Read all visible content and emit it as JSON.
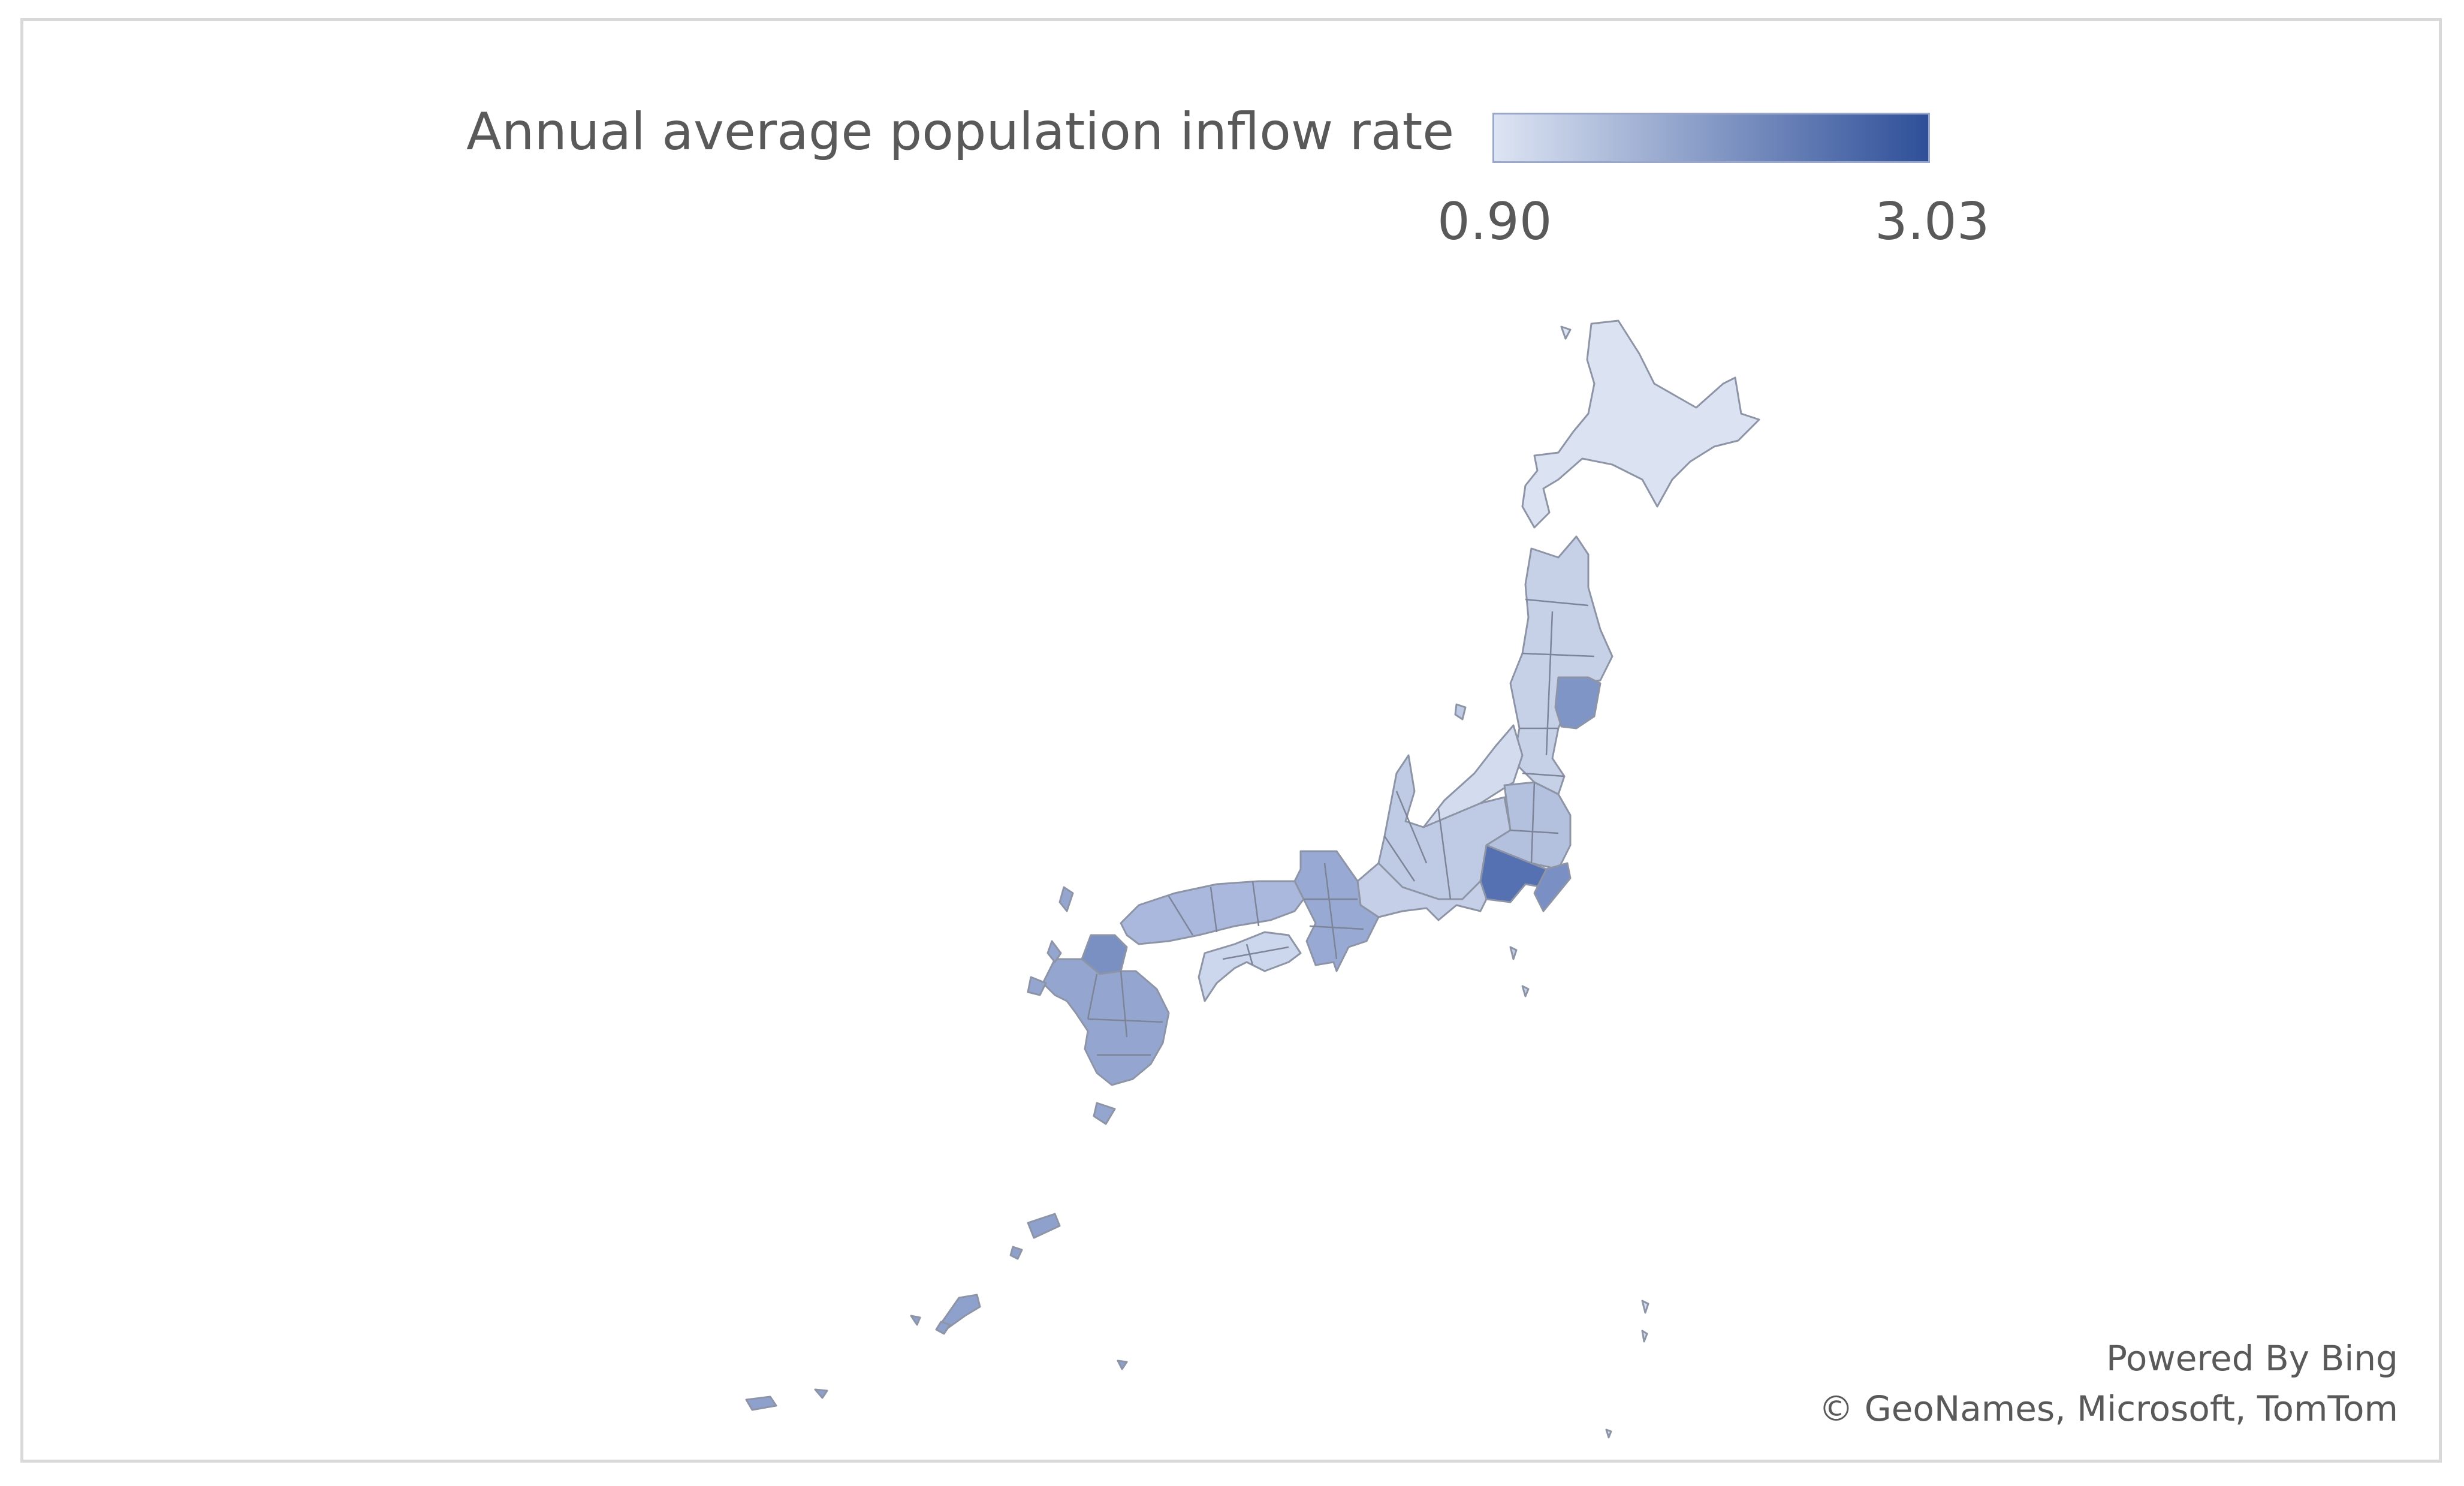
{
  "legend": {
    "title": "Annual average population inflow rate",
    "min_label": "0.90",
    "max_label": "3.03",
    "color_low": "#dde4f3",
    "color_high": "#2e4f98"
  },
  "attribution": {
    "line1": "Powered By Bing",
    "line2": "© GeoNames, Microsoft, TomTom"
  },
  "map": {
    "country": "Japan",
    "regions": [
      {
        "name": "Hokkaido",
        "color": "#dbe2f1"
      },
      {
        "name": "Tohoku",
        "color": "#c6d1e8"
      },
      {
        "name": "Miyagi",
        "color": "#7f95c6"
      },
      {
        "name": "Niigata",
        "color": "#d3dbee"
      },
      {
        "name": "Hokuriku-Chubu",
        "color": "#bfcbe5"
      },
      {
        "name": "Kita-Kanto",
        "color": "#b3c1df"
      },
      {
        "name": "Tokyo-Kanagawa-Saitama",
        "color": "#5571b1"
      },
      {
        "name": "Chiba",
        "color": "#7a90c4"
      },
      {
        "name": "Tokai",
        "color": "#c5cfe7"
      },
      {
        "name": "Kinki",
        "color": "#98aad3"
      },
      {
        "name": "Chugoku",
        "color": "#a9b8dc"
      },
      {
        "name": "Shikoku",
        "color": "#ccd6ec"
      },
      {
        "name": "Kyushu",
        "color": "#94a6d0"
      },
      {
        "name": "Fukuoka",
        "color": "#7a8fc2"
      },
      {
        "name": "Okinawa",
        "color": "#8ea1cd"
      }
    ]
  }
}
